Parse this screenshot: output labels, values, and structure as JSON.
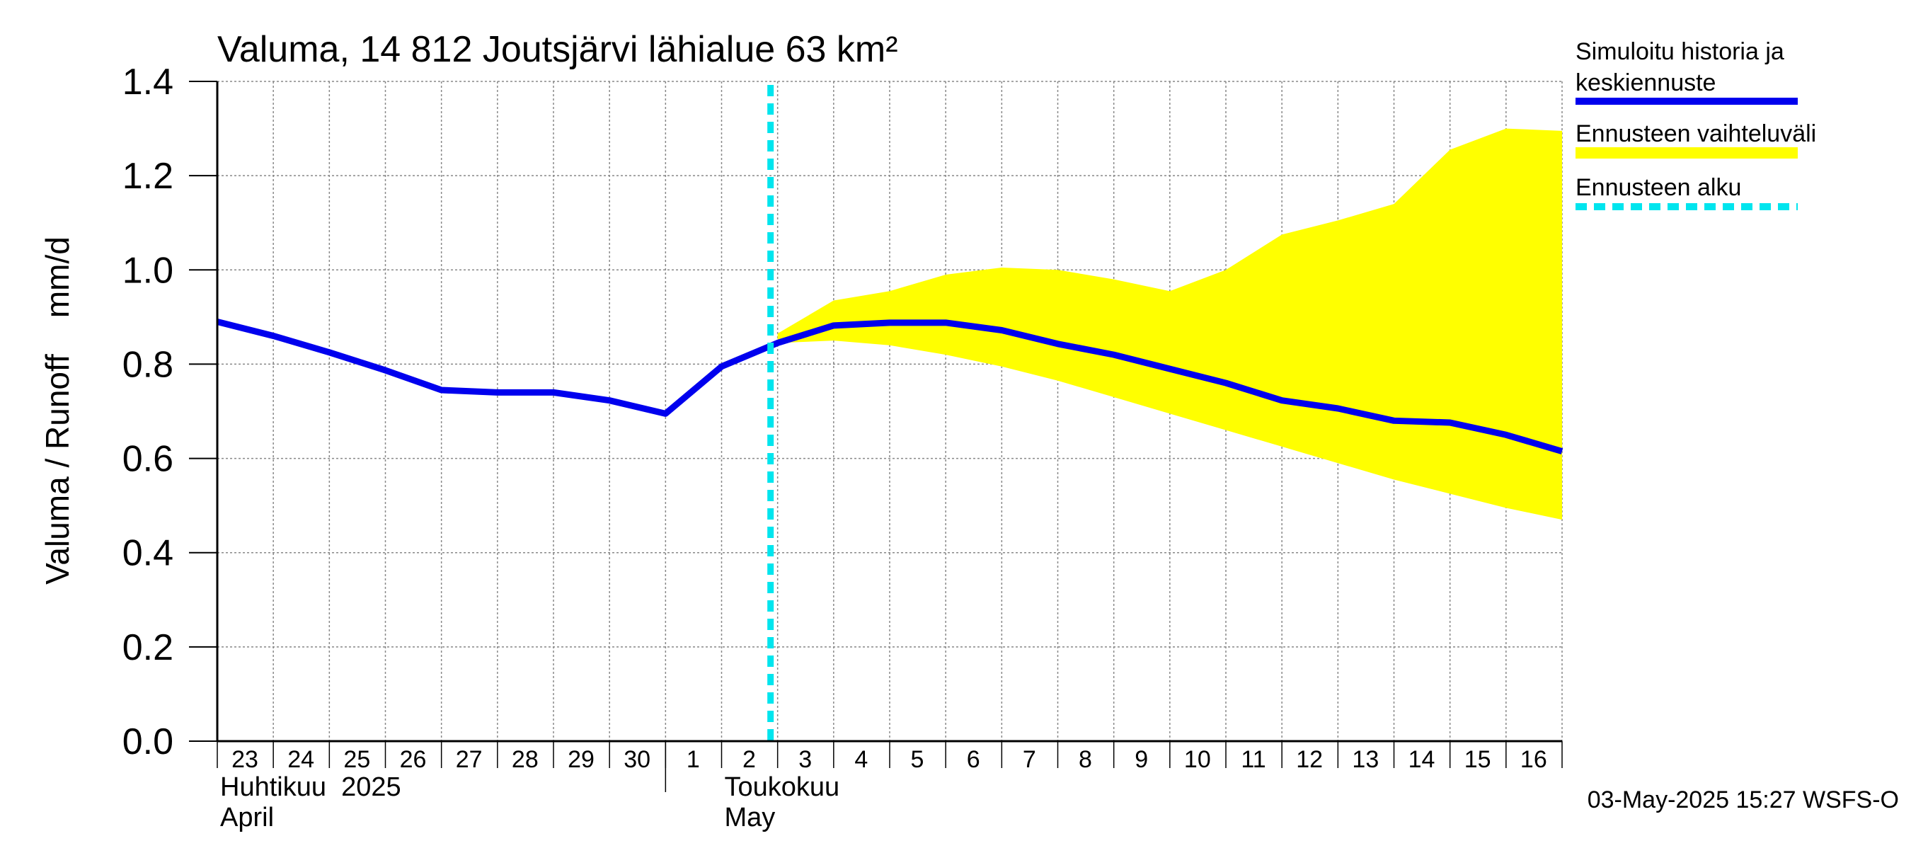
{
  "colors": {
    "series_line": "#0000ee",
    "band_fill": "#ffff00",
    "forecast_marker": "#00e5ee",
    "grid": "#888888",
    "axis": "#000000",
    "background": "#ffffff"
  },
  "chart_data": {
    "type": "line",
    "title": "Valuma, 14 812 Joutsjärvi lähialue 63 km²",
    "ylabel": "Valuma / Runoff    mm/d",
    "ylim": [
      0,
      1.4
    ],
    "yticks": [
      "0.0",
      "0.2",
      "0.4",
      "0.6",
      "0.8",
      "1.0",
      "1.2",
      "1.4"
    ],
    "xlim": [
      0,
      24
    ],
    "x_day_labels": [
      "23",
      "24",
      "25",
      "26",
      "27",
      "28",
      "29",
      "30",
      "1",
      "2",
      "3",
      "4",
      "5",
      "6",
      "7",
      "8",
      "9",
      "10",
      "11",
      "12",
      "13",
      "14",
      "15",
      "16"
    ],
    "month_labels": [
      {
        "fi": "Huhtikuu  2025",
        "en": "April",
        "day_index": 0
      },
      {
        "fi": "Toukokuu",
        "en": "May",
        "day_index": 9
      }
    ],
    "month_divider_day": 8,
    "forecast_start_day": 10,
    "series": [
      {
        "name": "Simuloitu historia ja keskiennuste",
        "x": [
          0,
          1,
          2,
          3,
          4,
          5,
          6,
          7,
          8,
          9,
          10,
          11,
          12,
          13,
          14,
          15,
          16,
          17,
          18,
          19,
          20,
          21,
          22,
          23,
          24
        ],
        "values": [
          0.89,
          0.86,
          0.825,
          0.787,
          0.745,
          0.74,
          0.74,
          0.723,
          0.695,
          0.795,
          0.845,
          0.882,
          0.888,
          0.888,
          0.872,
          0.843,
          0.82,
          0.79,
          0.76,
          0.723,
          0.706,
          0.68,
          0.676,
          0.65,
          0.615
        ]
      }
    ],
    "band": {
      "name": "Ennusteen vaihteluväli",
      "x": [
        10,
        11,
        12,
        13,
        14,
        15,
        16,
        17,
        18,
        19,
        20,
        21,
        22,
        23,
        24
      ],
      "upper": [
        0.865,
        0.935,
        0.955,
        0.99,
        1.005,
        1.0,
        0.98,
        0.955,
        1.0,
        1.075,
        1.105,
        1.14,
        1.255,
        1.3,
        1.295
      ],
      "lower": [
        0.845,
        0.85,
        0.84,
        0.82,
        0.795,
        0.765,
        0.73,
        0.695,
        0.66,
        0.625,
        0.59,
        0.555,
        0.525,
        0.495,
        0.47
      ]
    },
    "legend": {
      "placement": "right",
      "items": [
        {
          "label_line1": "Simuloitu historia ja",
          "label_line2": "keskiennuste",
          "style": "line"
        },
        {
          "label_line1": "Ennusteen vaihteluväli",
          "label_line2": "",
          "style": "band"
        },
        {
          "label_line1": "Ennusteen alku",
          "label_line2": "",
          "style": "dashed"
        }
      ]
    },
    "footer": "03-May-2025 15:27 WSFS-O"
  }
}
